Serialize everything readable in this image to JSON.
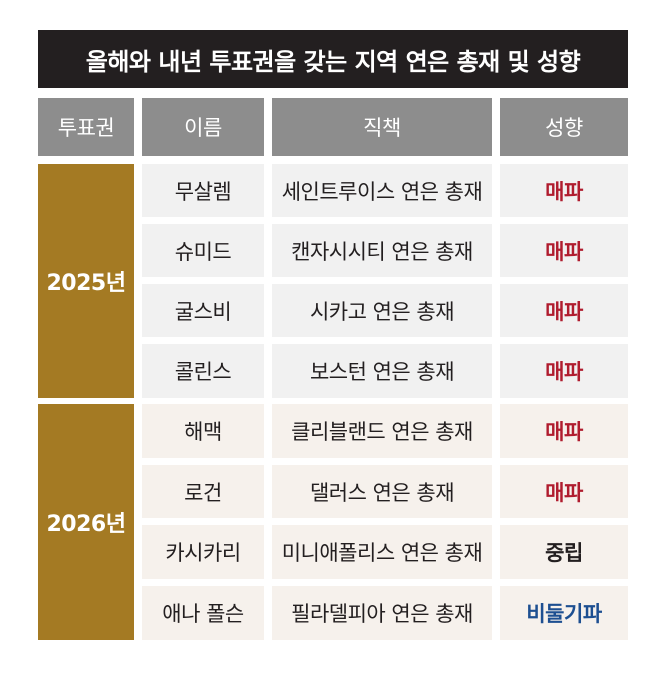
{
  "title": "올해와 내년 투표권을 갖는 지역 연은 총재 및 성향",
  "headers": [
    "투표권",
    "이름",
    "직책",
    "성향"
  ],
  "groups": [
    {
      "year": "2025년"
    },
    {
      "year": "2026년"
    }
  ],
  "rows": [
    {
      "name": "무살렘",
      "position": "세인트루이스 연은 총재",
      "stance": "매파"
    },
    {
      "name": "슈미드",
      "position": "캔자시시티 연은 총재",
      "stance": "매파"
    },
    {
      "name": "굴스비",
      "position": "시카고 연은 총재",
      "stance": "매파"
    },
    {
      "name": "콜린스",
      "position": "보스턴 연은 총재",
      "stance": "매파"
    },
    {
      "name": "해맥",
      "position": "클리블랜드 연은 총재",
      "stance": "매파"
    },
    {
      "name": "로건",
      "position": "댈러스 연은 총재",
      "stance": "매파"
    },
    {
      "name": "카시카리",
      "position": "미니애폴리스 연은 총재",
      "stance": "중립"
    },
    {
      "name": "애나 폴슨",
      "position": "필라델피아 연은 총재",
      "stance": "비둘기파"
    }
  ],
  "colors": {
    "title_bg": "#231f20",
    "header_bg": "#8d8d8d",
    "year_bg": "#a47a23",
    "hawk": "#b01c2e",
    "dove": "#1d4f91"
  }
}
